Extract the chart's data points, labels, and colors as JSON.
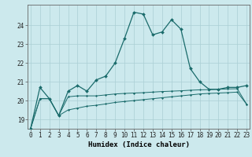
{
  "xlabel": "Humidex (Indice chaleur)",
  "ylabel": "",
  "background_color": "#cce9ed",
  "grid_color": "#aacfd4",
  "line_color": "#1a6b6b",
  "x_values": [
    0,
    1,
    2,
    3,
    4,
    5,
    6,
    7,
    8,
    9,
    10,
    11,
    12,
    13,
    14,
    15,
    16,
    17,
    18,
    19,
    20,
    21,
    22,
    23
  ],
  "line1": [
    18.5,
    20.7,
    20.1,
    19.2,
    20.5,
    20.8,
    20.5,
    21.1,
    21.3,
    22.0,
    23.3,
    24.7,
    24.6,
    23.5,
    23.65,
    24.3,
    23.8,
    21.7,
    21.0,
    20.6,
    20.6,
    20.7,
    20.7,
    20.8
  ],
  "line2": [
    18.5,
    20.1,
    20.1,
    19.2,
    20.2,
    20.25,
    20.25,
    20.25,
    20.3,
    20.35,
    20.38,
    20.4,
    20.42,
    20.45,
    20.48,
    20.5,
    20.52,
    20.55,
    20.57,
    20.58,
    20.6,
    20.62,
    20.63,
    19.8
  ],
  "line3": [
    18.5,
    20.1,
    20.1,
    19.2,
    19.5,
    19.6,
    19.7,
    19.75,
    19.82,
    19.9,
    19.95,
    20.0,
    20.05,
    20.1,
    20.15,
    20.2,
    20.25,
    20.3,
    20.35,
    20.38,
    20.4,
    20.42,
    20.45,
    19.8
  ],
  "ylim": [
    18.5,
    25.1
  ],
  "yticks": [
    19,
    20,
    21,
    22,
    23,
    24
  ],
  "xticks": [
    0,
    1,
    2,
    3,
    4,
    5,
    6,
    7,
    8,
    9,
    10,
    11,
    12,
    13,
    14,
    15,
    16,
    17,
    18,
    19,
    20,
    21,
    22,
    23
  ],
  "tick_fontsize": 5.5,
  "xlabel_fontsize": 6.5
}
